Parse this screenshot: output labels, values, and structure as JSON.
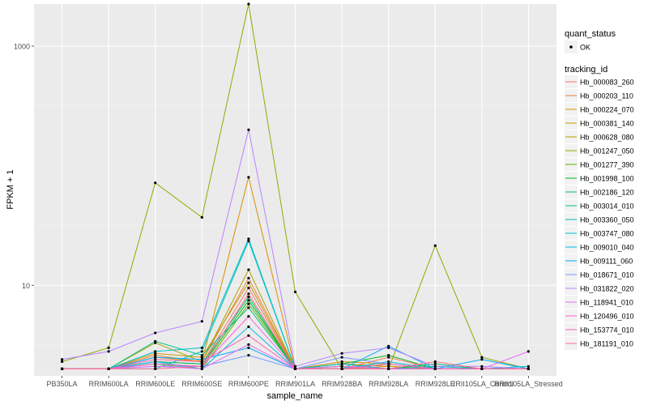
{
  "chart_data": {
    "type": "line",
    "xlabel": "sample_name",
    "ylabel": "FPKM + 1",
    "y_scale": "log10",
    "ylim": [
      1.75,
      2250
    ],
    "y_ticks": [
      10,
      1000
    ],
    "y_tick_labels": [
      "10",
      "1000"
    ],
    "grid": true,
    "legend_position": "right",
    "categories": [
      "PB350LA",
      "RRIM600LA",
      "RRIM600LE",
      "RRIM600SE",
      "RRIM600PE",
      "RRIM901LA",
      "RRIM928BA",
      "RRIM928LA",
      "RRIM928LE",
      "RRII105LA_Control",
      "RRII105LA_Stressed"
    ],
    "category_labels": [
      "PB350LA",
      "RRIM600LA",
      "RRIM600LE",
      "RRIM600SE",
      "RRIM600PE",
      "RRIM901LA",
      "RRIM928BA",
      "RRIM928LA",
      "RRIM928LE",
      "RRII105LA_Control",
      "RRII105LA_Stressed"
    ],
    "point_legend": {
      "title": "quant_status",
      "items": [
        {
          "label": "OK",
          "color": "#000000"
        }
      ]
    },
    "color_legend_title": "tracking_id",
    "series": [
      {
        "name": "Hb_000083_260",
        "color": "#F8766D",
        "values": [
          2.0,
          2.0,
          2.3,
          2.2,
          9.5,
          2.0,
          2.0,
          2.5,
          2.0,
          2.0,
          2.0
        ]
      },
      {
        "name": "Hb_000203_110",
        "color": "#EC8239",
        "values": [
          2.0,
          2.0,
          2.6,
          2.3,
          11.5,
          2.0,
          2.0,
          2.1,
          2.0,
          2.0,
          2.0
        ]
      },
      {
        "name": "Hb_000224_070",
        "color": "#DB8E00",
        "values": [
          2.0,
          2.0,
          2.5,
          2.3,
          80,
          2.0,
          2.3,
          2.2,
          2.0,
          2.0,
          2.0
        ]
      },
      {
        "name": "Hb_000381_140",
        "color": "#C79800",
        "values": [
          2.0,
          2.0,
          2.7,
          2.5,
          10.5,
          2.0,
          2.2,
          2.1,
          2.0,
          2.0,
          2.0
        ]
      },
      {
        "name": "Hb_000628_080",
        "color": "#AEA200",
        "values": [
          2.0,
          2.0,
          3.3,
          2.3,
          13.5,
          2.0,
          2.0,
          2.0,
          2.0,
          2.0,
          2.0
        ]
      },
      {
        "name": "Hb_001247_050",
        "color": "#8FAA00",
        "values": [
          2.3,
          3.0,
          72,
          37,
          2250,
          8.8,
          2.0,
          2.0,
          21.5,
          2.5,
          2.0
        ]
      },
      {
        "name": "Hb_001277_390",
        "color": "#64B200",
        "values": [
          2.0,
          2.0,
          2.2,
          2.0,
          7.0,
          2.0,
          2.1,
          2.0,
          2.0,
          2.0,
          2.0
        ]
      },
      {
        "name": "Hb_001998_100",
        "color": "#00B81B",
        "values": [
          2.0,
          2.0,
          2.2,
          2.1,
          7.5,
          2.0,
          2.2,
          2.6,
          2.0,
          2.0,
          2.0
        ]
      },
      {
        "name": "Hb_002186_120",
        "color": "#00BD5C",
        "values": [
          2.0,
          2.0,
          2.3,
          2.2,
          8.0,
          2.0,
          2.1,
          2.0,
          2.2,
          2.0,
          2.0
        ]
      },
      {
        "name": "Hb_003014_010",
        "color": "#00C08E",
        "values": [
          2.0,
          2.0,
          3.4,
          2.6,
          6.5,
          2.0,
          2.0,
          2.2,
          2.0,
          2.0,
          2.0
        ]
      },
      {
        "name": "Hb_003360_050",
        "color": "#00C1B2",
        "values": [
          2.0,
          2.0,
          2.0,
          2.8,
          23.5,
          2.0,
          2.0,
          2.0,
          2.1,
          2.0,
          2.0
        ]
      },
      {
        "name": "Hb_003747_080",
        "color": "#00BFD0",
        "values": [
          2.0,
          2.0,
          2.8,
          3.0,
          24.5,
          2.0,
          2.2,
          2.0,
          2.0,
          2.0,
          2.0
        ]
      },
      {
        "name": "Hb_009010_040",
        "color": "#00B8E7",
        "values": [
          2.0,
          2.0,
          2.3,
          2.0,
          4.5,
          2.0,
          2.0,
          2.3,
          2.0,
          2.0,
          2.1
        ]
      },
      {
        "name": "Hb_009111_060",
        "color": "#00ABFD",
        "values": [
          2.0,
          2.0,
          2.5,
          2.4,
          3.0,
          2.0,
          2.0,
          3.1,
          2.0,
          2.4,
          2.0
        ]
      },
      {
        "name": "Hb_018671_010",
        "color": "#7698FF",
        "values": [
          2.0,
          2.0,
          2.1,
          2.1,
          2.6,
          2.0,
          2.5,
          2.2,
          2.0,
          2.0,
          2.0
        ]
      },
      {
        "name": "Hb_031822_020",
        "color": "#B983FF",
        "values": [
          2.4,
          2.8,
          4.0,
          5.0,
          200,
          2.1,
          2.7,
          3.0,
          2.1,
          2.1,
          2.0
        ]
      },
      {
        "name": "Hb_118941_010",
        "color": "#E56CF5",
        "values": [
          2.0,
          2.0,
          2.1,
          2.0,
          3.2,
          2.0,
          2.0,
          2.0,
          2.0,
          2.0,
          2.8
        ]
      },
      {
        "name": "Hb_120496_010",
        "color": "#F963DB",
        "values": [
          2.0,
          2.0,
          2.2,
          2.1,
          5.5,
          2.0,
          2.1,
          2.0,
          2.0,
          2.0,
          2.0
        ]
      },
      {
        "name": "Hb_153774_010",
        "color": "#FF64B0",
        "values": [
          2.0,
          2.0,
          2.4,
          2.3,
          3.8,
          2.0,
          2.0,
          2.2,
          2.0,
          2.0,
          2.0
        ]
      },
      {
        "name": "Hb_181191_010",
        "color": "#FF6C90",
        "values": [
          2.0,
          2.0,
          2.0,
          2.1,
          8.5,
          2.0,
          2.0,
          2.0,
          2.3,
          2.0,
          2.0
        ]
      }
    ]
  }
}
